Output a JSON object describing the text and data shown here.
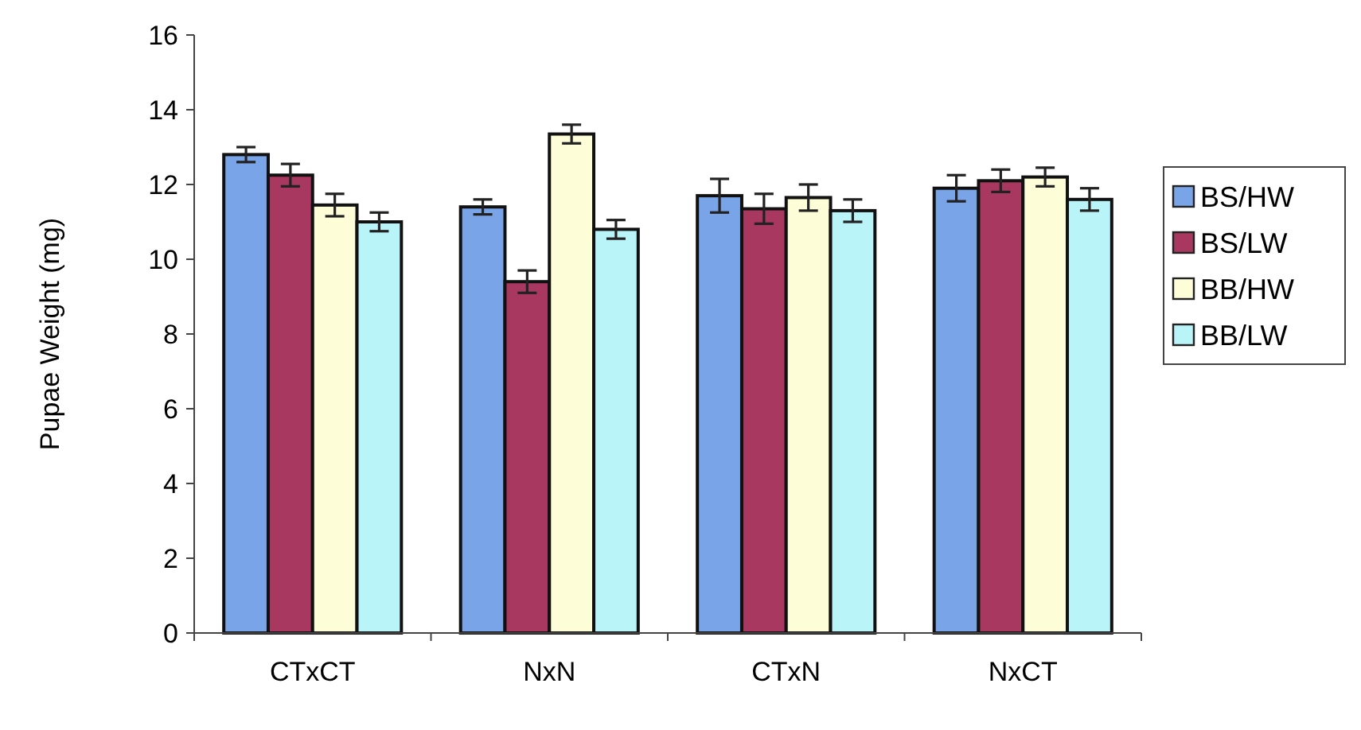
{
  "chart_data": {
    "type": "bar",
    "ylabel": "Pupae Weight (mg)",
    "categories": [
      "CTxCT",
      "NxN",
      "CTxN",
      "NxCT"
    ],
    "series": [
      {
        "name": "BS/HW",
        "color": "#7aa4e8",
        "values": [
          12.8,
          11.4,
          11.7,
          11.9
        ],
        "errors": [
          0.2,
          0.2,
          0.45,
          0.35
        ]
      },
      {
        "name": "BS/LW",
        "color": "#a8385f",
        "values": [
          12.25,
          9.4,
          11.35,
          12.1
        ],
        "errors": [
          0.3,
          0.3,
          0.4,
          0.3
        ]
      },
      {
        "name": "BB/HW",
        "color": "#fdfdd8",
        "values": [
          11.45,
          13.35,
          11.65,
          12.2
        ],
        "errors": [
          0.3,
          0.25,
          0.35,
          0.25
        ]
      },
      {
        "name": "BB/LW",
        "color": "#b8f4f8",
        "values": [
          11.0,
          10.8,
          11.3,
          11.6
        ],
        "errors": [
          0.25,
          0.25,
          0.3,
          0.3
        ]
      }
    ],
    "ylim": [
      0,
      16
    ],
    "yticks": [
      0,
      2,
      4,
      6,
      8,
      10,
      12,
      14,
      16
    ],
    "grid": false,
    "legend": "right"
  }
}
